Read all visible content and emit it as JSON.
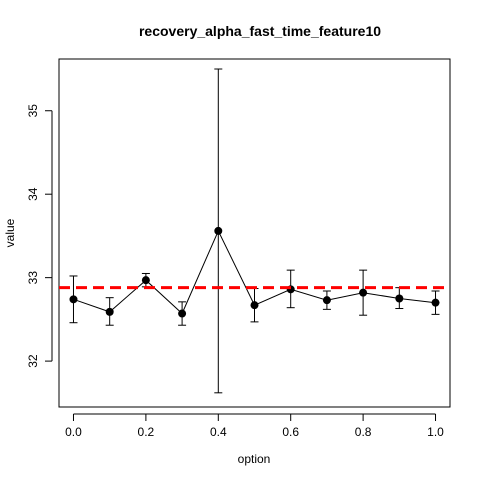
{
  "chart_data": {
    "type": "line",
    "title": "recovery_alpha_fast_time_feature10",
    "xlabel": "option",
    "ylabel": "value",
    "xlim": [
      -0.04,
      1.04
    ],
    "ylim": [
      31.45,
      35.62
    ],
    "xticks": [
      0.0,
      0.2,
      0.4,
      0.6,
      0.8,
      1.0
    ],
    "xtick_labels": [
      "0.0",
      "0.2",
      "0.4",
      "0.6",
      "0.8",
      "1.0"
    ],
    "yticks": [
      32,
      33,
      34,
      35
    ],
    "ytick_labels": [
      "32",
      "33",
      "34",
      "35"
    ],
    "grid": false,
    "series": [
      {
        "x": [
          0.0,
          0.1,
          0.2,
          0.3,
          0.4,
          0.5,
          0.6,
          0.7,
          0.8,
          0.9,
          1.0
        ],
        "y": [
          32.74,
          32.59,
          32.97,
          32.57,
          33.56,
          32.67,
          32.86,
          32.73,
          32.82,
          32.75,
          32.7
        ],
        "error_low": [
          32.46,
          32.43,
          32.89,
          32.43,
          31.62,
          32.47,
          32.64,
          32.62,
          32.55,
          32.63,
          32.56
        ],
        "error_high": [
          33.02,
          32.76,
          33.05,
          32.71,
          35.5,
          32.87,
          33.09,
          32.84,
          33.09,
          32.88,
          32.84
        ],
        "color": "#000000"
      }
    ],
    "reference_line": {
      "y": 32.88,
      "color": "#ff0000",
      "style": "dashed"
    }
  }
}
